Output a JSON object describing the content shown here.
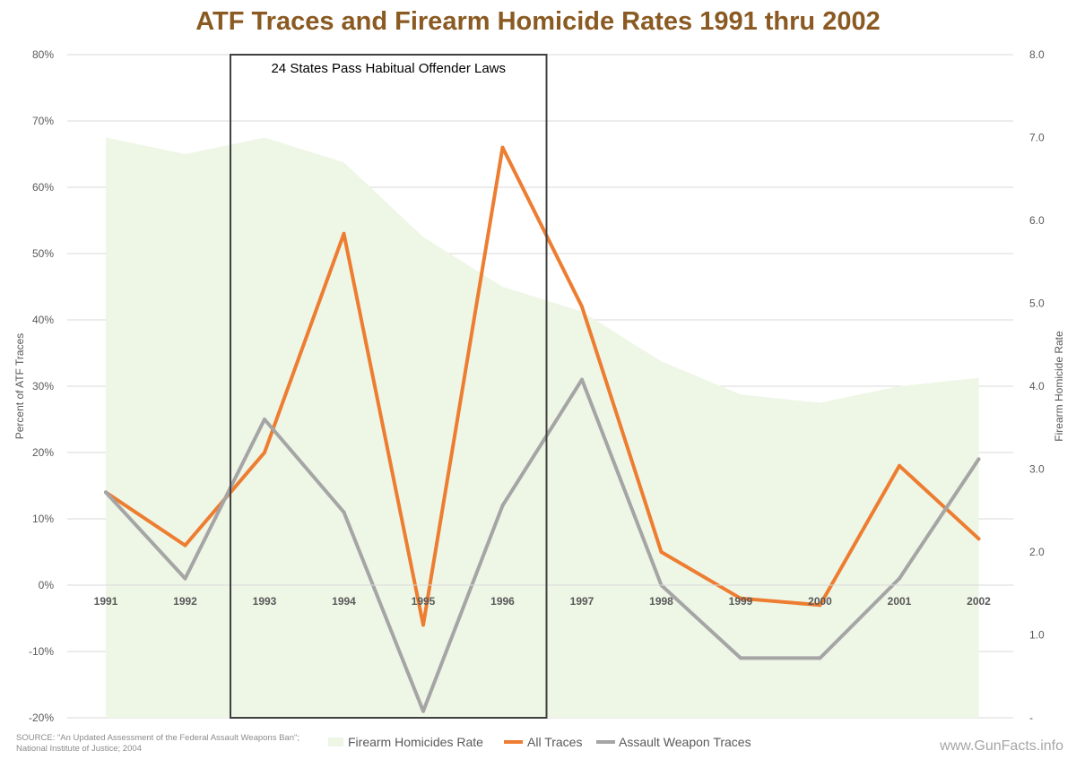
{
  "chart_data": {
    "type": "line",
    "title": "ATF Traces and Firearm Homicide Rates 1991 thru 2002",
    "categories": [
      "1991",
      "1992",
      "1993",
      "1994",
      "1995",
      "1996",
      "1997",
      "1998",
      "1999",
      "2000",
      "2001",
      "2002"
    ],
    "ylabel": "Percent of ATF Traces",
    "y2label": "Firearm Homicide Rate",
    "ylim": [
      -20,
      80
    ],
    "y2lim": [
      0,
      8
    ],
    "yticks": [
      "-20%",
      "-10%",
      "0%",
      "10%",
      "20%",
      "30%",
      "40%",
      "50%",
      "60%",
      "70%",
      "80%"
    ],
    "y2ticks": [
      "-",
      "1.0",
      "2.0",
      "3.0",
      "4.0",
      "5.0",
      "6.0",
      "7.0",
      "8.0"
    ],
    "grid": true,
    "legend_position": "bottom",
    "series": [
      {
        "name": "Firearm Homicides Rate",
        "type": "area",
        "axis": "right",
        "color": "#eef6e6",
        "values": [
          7.0,
          6.8,
          7.0,
          6.7,
          5.8,
          5.2,
          4.9,
          4.3,
          3.9,
          3.8,
          4.0,
          4.1
        ]
      },
      {
        "name": "All Traces",
        "type": "line",
        "axis": "left",
        "color": "#ed7d31",
        "values": [
          14,
          6,
          20,
          53,
          -6,
          66,
          42,
          5,
          -2,
          -3,
          18,
          7
        ]
      },
      {
        "name": "Assault Weapon Traces",
        "type": "line",
        "axis": "left",
        "color": "#a5a5a5",
        "values": [
          14,
          1,
          25,
          11,
          -19,
          12,
          31,
          0,
          -11,
          -11,
          1,
          19
        ]
      }
    ],
    "annotation": {
      "text": "24 States Pass Habitual Offender Laws",
      "from_category": "1993",
      "to_category": "1996"
    }
  },
  "source_lines": [
    "SOURCE: \"An Updated Assessment of the Federal Assault Weapons Ban\";",
    "National Institute of Justice; 2004"
  ],
  "watermark": "www.GunFacts.info"
}
